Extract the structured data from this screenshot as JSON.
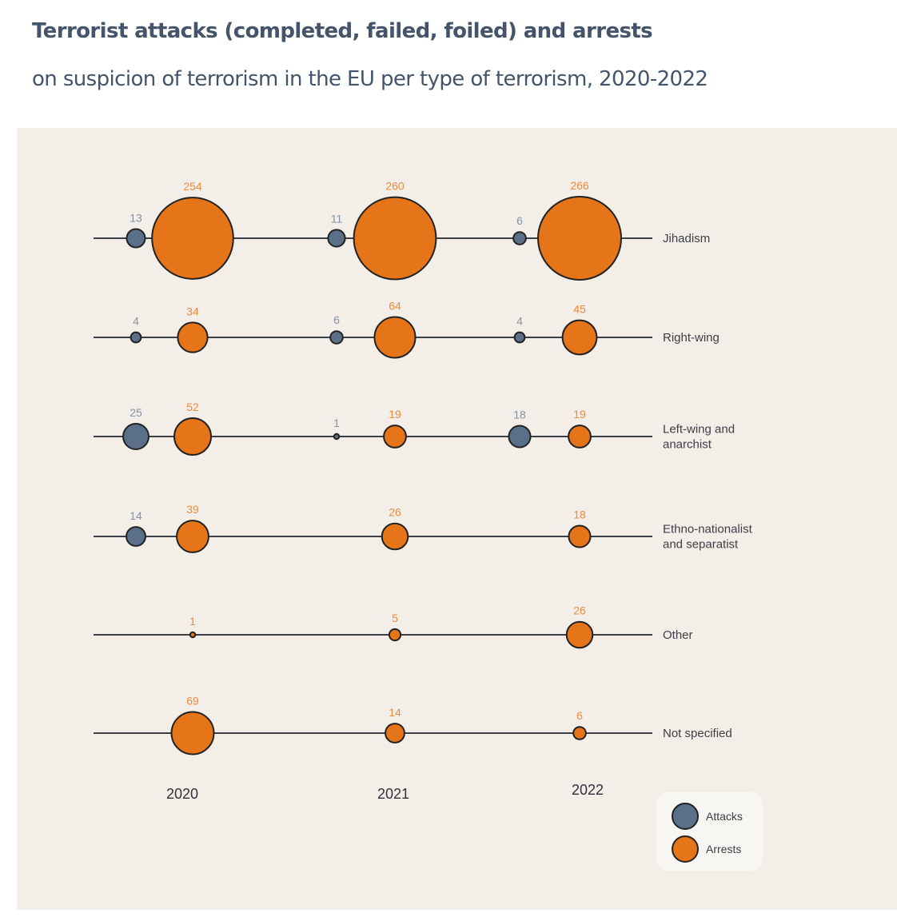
{
  "header": {
    "title": "Terrorist attacks (completed, failed, foiled) and arrests",
    "subtitle": "on suspicion of terrorism in the EU per type of terrorism, 2020-2022"
  },
  "colors": {
    "attacks": "#5a7088",
    "arrests": "#e67519",
    "attacks_label": "#8294a8",
    "arrests_label": "#ee8a3c",
    "line": "#3b3f48",
    "background": "#f3eee8"
  },
  "chart_data": {
    "type": "bubble",
    "title": "Terrorist attacks (completed, failed, foiled) and arrests",
    "subtitle": "on suspicion of terrorism in the EU per type of terrorism, 2020-2022",
    "years": [
      "2020",
      "2021",
      "2022"
    ],
    "categories": [
      "Jihadism",
      "Right-wing",
      "Left-wing and anarchist",
      "Ethno-nationalist and separatist",
      "Other",
      "Not specified"
    ],
    "series": [
      {
        "name": "Attacks",
        "values": [
          [
            13,
            11,
            6
          ],
          [
            4,
            6,
            4
          ],
          [
            25,
            1,
            18
          ],
          [
            14,
            null,
            null
          ],
          [
            null,
            null,
            null
          ],
          [
            null,
            null,
            null
          ]
        ]
      },
      {
        "name": "Arrests",
        "values": [
          [
            254,
            260,
            266
          ],
          [
            34,
            64,
            45
          ],
          [
            52,
            19,
            19
          ],
          [
            39,
            26,
            18
          ],
          [
            1,
            5,
            26
          ],
          [
            69,
            14,
            6
          ]
        ]
      }
    ],
    "legend": [
      "Attacks",
      "Arrests"
    ],
    "legend_position": "bottom-right"
  }
}
